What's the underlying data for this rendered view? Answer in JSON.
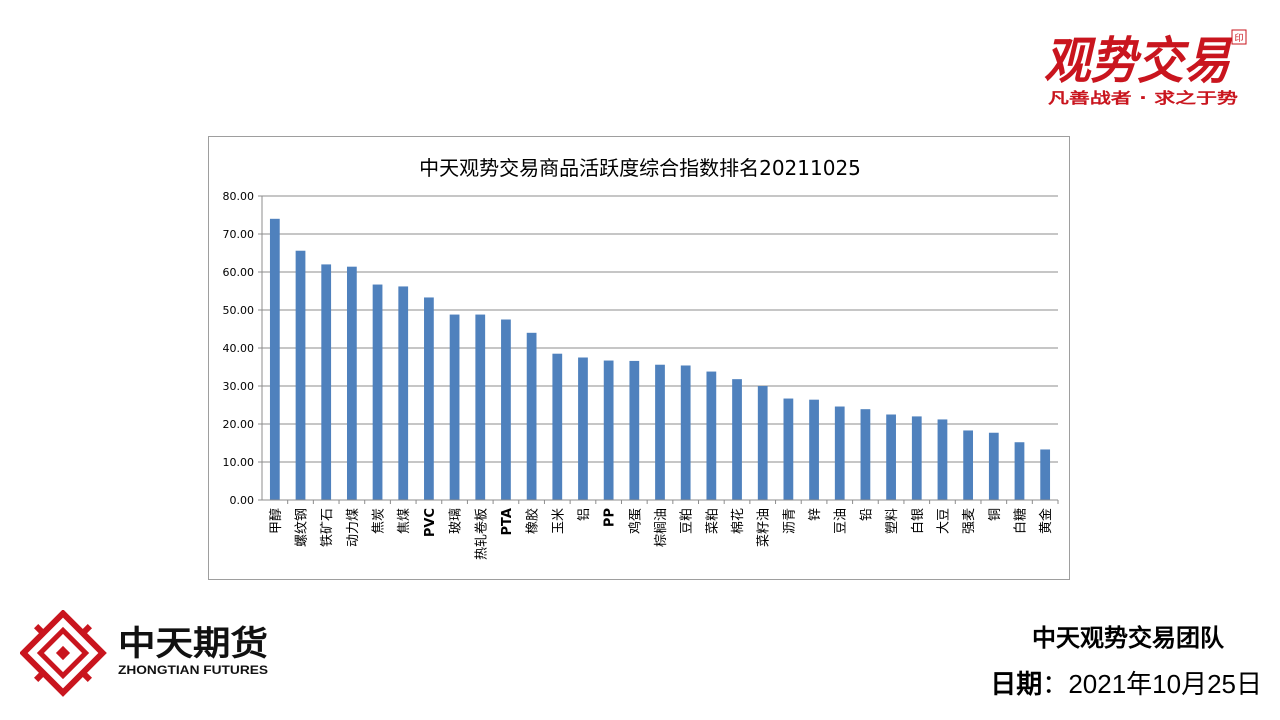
{
  "brand_top": {
    "logo_text": "观势交易",
    "seal_text": "印",
    "slogan": "凡善战者 · 求之于势",
    "color": "#c9151e"
  },
  "brand_bottom": {
    "name_cn": "中天期货",
    "name_en": "ZHONGTIAN FUTURES",
    "logo_color": "#c9151e"
  },
  "footer": {
    "team": "中天观势交易团队",
    "date_label": "日期",
    "date_sep": "：",
    "date_value": "2021年10月25日"
  },
  "chart_data": {
    "type": "bar",
    "title": "中天观势交易商品活跃度综合指数排名20211025",
    "xlabel": "",
    "ylabel": "",
    "ylim": [
      0,
      80
    ],
    "y_ticks": [
      "0.00",
      "10.00",
      "20.00",
      "30.00",
      "40.00",
      "50.00",
      "60.00",
      "70.00",
      "80.00"
    ],
    "grid": true,
    "legend": "none",
    "bar_color": "#4f81bd",
    "categories": [
      "甲醇",
      "螺纹钢",
      "铁矿石",
      "动力煤",
      "焦炭",
      "焦煤",
      "PVC",
      "玻璃",
      "热轧卷板",
      "PTA",
      "橡胶",
      "玉米",
      "铝",
      "PP",
      "鸡蛋",
      "棕榈油",
      "豆粕",
      "菜粕",
      "棉花",
      "菜籽油",
      "沥青",
      "锌",
      "豆油",
      "铅",
      "塑料",
      "白银",
      "大豆",
      "强麦",
      "铜",
      "白糖",
      "黄金"
    ],
    "values": [
      74.0,
      65.6,
      62.0,
      61.4,
      56.7,
      56.2,
      53.3,
      48.8,
      48.8,
      47.5,
      44.0,
      38.5,
      37.5,
      36.7,
      36.6,
      35.6,
      35.4,
      33.8,
      31.8,
      30.0,
      26.7,
      26.4,
      24.6,
      23.9,
      22.5,
      22.0,
      21.2,
      18.3,
      17.7,
      15.2,
      13.3
    ]
  }
}
